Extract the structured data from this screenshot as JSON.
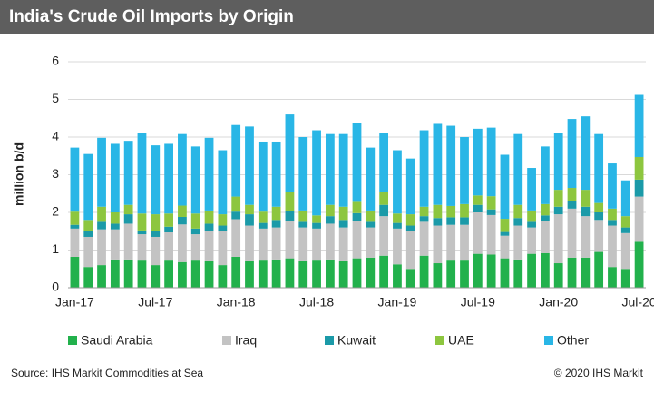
{
  "chart_data": {
    "type": "stacked-bar",
    "title": "India's Crude Oil Imports by Origin",
    "y_label": "million b/d",
    "source": "Source: IHS Markit Commodities at Sea",
    "copyright": "© 2020 IHS Markit",
    "categories": [
      "Jan-17",
      null,
      null,
      null,
      null,
      null,
      "Jul-17",
      null,
      null,
      null,
      null,
      null,
      "Jan-18",
      null,
      null,
      null,
      null,
      null,
      "Jul-18",
      null,
      null,
      null,
      null,
      null,
      "Jan-19",
      null,
      null,
      null,
      null,
      null,
      "Jul-19",
      null,
      null,
      null,
      null,
      null,
      "Jan-20",
      null,
      null,
      null,
      null,
      null,
      "Jul-20"
    ],
    "ylim": [
      0,
      6
    ],
    "yticks": [
      0,
      1,
      2,
      3,
      4,
      5,
      6
    ],
    "grid": true,
    "series": [
      {
        "name": "Saudi Arabia",
        "color": "#22b14c",
        "values": [
          0.82,
          0.55,
          0.6,
          0.75,
          0.75,
          0.72,
          0.6,
          0.72,
          0.68,
          0.72,
          0.7,
          0.6,
          0.82,
          0.7,
          0.72,
          0.75,
          0.78,
          0.7,
          0.72,
          0.75,
          0.7,
          0.78,
          0.8,
          0.85,
          0.62,
          0.5,
          0.85,
          0.65,
          0.72,
          0.72,
          0.9,
          0.88,
          0.78,
          0.75,
          0.9,
          0.92,
          0.65,
          0.8,
          0.8,
          0.95,
          0.55,
          0.5,
          1.22
        ]
      },
      {
        "name": "Iraq",
        "color": "#c3c3c3",
        "values": [
          0.75,
          0.8,
          0.95,
          0.8,
          0.95,
          0.7,
          0.75,
          0.75,
          1.0,
          0.7,
          0.8,
          0.9,
          1.0,
          0.95,
          0.85,
          0.85,
          1.0,
          0.9,
          0.85,
          0.95,
          0.9,
          1.0,
          0.8,
          1.05,
          0.95,
          1.0,
          0.9,
          1.0,
          0.95,
          0.95,
          1.1,
          1.05,
          0.6,
          0.9,
          0.7,
          0.85,
          1.3,
          1.3,
          1.1,
          0.85,
          1.1,
          0.95,
          1.2
        ]
      },
      {
        "name": "Kuwait",
        "color": "#1b9aa8",
        "values": [
          0.1,
          0.15,
          0.2,
          0.15,
          0.25,
          0.1,
          0.15,
          0.15,
          0.2,
          0.15,
          0.2,
          0.15,
          0.2,
          0.3,
          0.15,
          0.2,
          0.25,
          0.15,
          0.15,
          0.2,
          0.2,
          0.2,
          0.15,
          0.3,
          0.15,
          0.15,
          0.15,
          0.2,
          0.2,
          0.2,
          0.2,
          0.15,
          0.1,
          0.2,
          0.15,
          0.15,
          0.2,
          0.2,
          0.25,
          0.2,
          0.15,
          0.15,
          0.45
        ]
      },
      {
        "name": "UAE",
        "color": "#8dc63f",
        "values": [
          0.35,
          0.3,
          0.4,
          0.3,
          0.25,
          0.45,
          0.45,
          0.35,
          0.3,
          0.4,
          0.35,
          0.3,
          0.4,
          0.25,
          0.3,
          0.35,
          0.5,
          0.3,
          0.2,
          0.3,
          0.35,
          0.3,
          0.3,
          0.35,
          0.25,
          0.3,
          0.25,
          0.35,
          0.3,
          0.35,
          0.25,
          0.35,
          0.35,
          0.35,
          0.3,
          0.3,
          0.45,
          0.35,
          0.45,
          0.25,
          0.3,
          0.3,
          0.6
        ]
      },
      {
        "name": "Other",
        "color": "#29b6e6",
        "values": [
          1.7,
          1.75,
          1.83,
          1.82,
          1.7,
          2.15,
          1.83,
          1.85,
          1.9,
          1.78,
          1.93,
          1.7,
          1.9,
          2.08,
          1.86,
          1.73,
          2.07,
          1.95,
          2.26,
          1.88,
          1.93,
          2.1,
          1.67,
          1.57,
          1.68,
          1.48,
          2.03,
          2.15,
          2.13,
          1.78,
          1.77,
          1.82,
          1.7,
          1.88,
          1.13,
          1.53,
          1.52,
          1.83,
          1.95,
          1.83,
          1.2,
          0.95,
          1.65
        ]
      }
    ]
  }
}
